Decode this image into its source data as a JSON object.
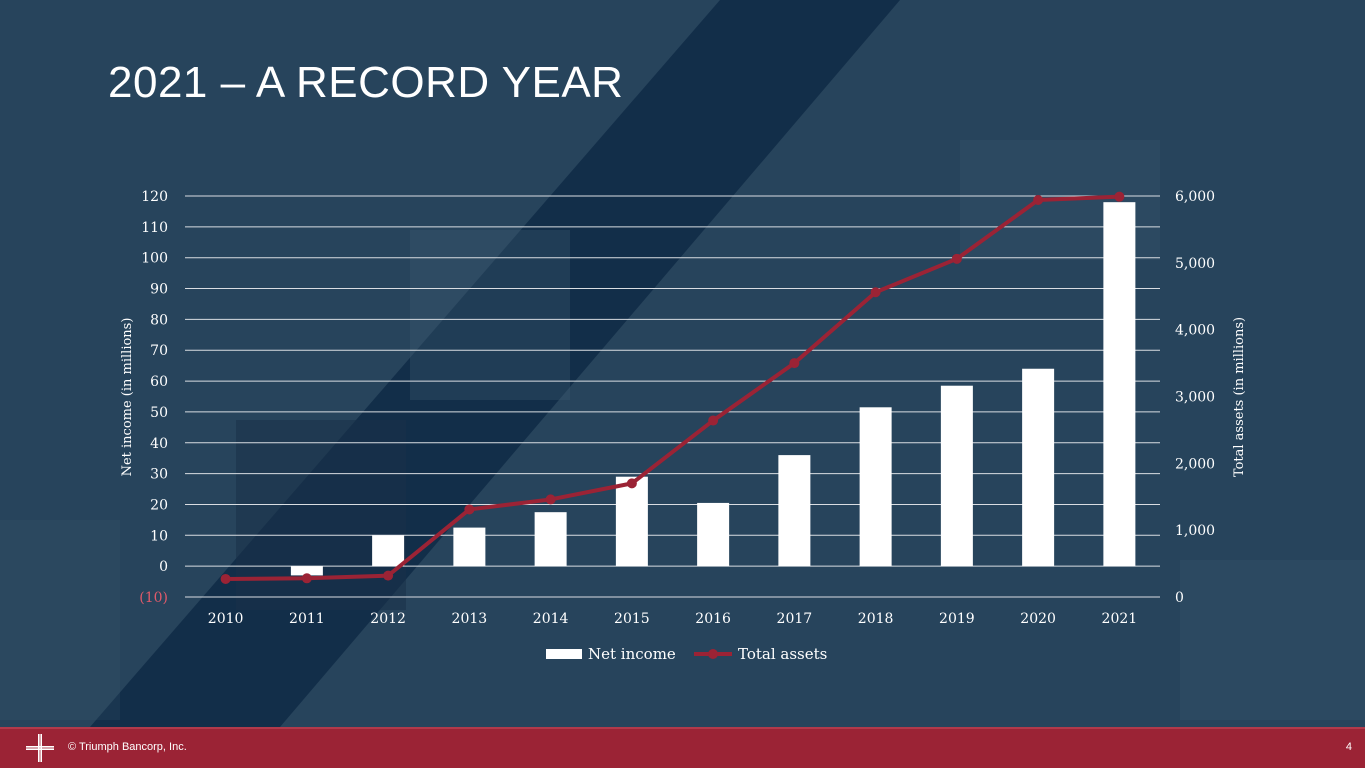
{
  "slide": {
    "title": "2021 – A RECORD YEAR",
    "footer_text": "© Triumph Bancorp, Inc.",
    "page_number": "4"
  },
  "colors": {
    "background": "#2b4a62",
    "bar": "#ffffff",
    "line": "#9b2335",
    "footer": "#9b2335",
    "text": "#ffffff",
    "grid": "#d9dde2"
  },
  "chart_data": {
    "type": "bar",
    "categories": [
      "2010",
      "2011",
      "2012",
      "2013",
      "2014",
      "2015",
      "2016",
      "2017",
      "2018",
      "2019",
      "2020",
      "2021"
    ],
    "series": [
      {
        "name": "Net income",
        "type": "bar",
        "axis": "left",
        "values": [
          0,
          -3,
          10,
          12.5,
          17.5,
          29,
          20.5,
          36,
          51.5,
          58.5,
          64,
          118
        ]
      },
      {
        "name": "Total assets",
        "type": "line",
        "axis": "right",
        "values": [
          270,
          280,
          320,
          1310,
          1460,
          1700,
          2640,
          3500,
          4560,
          5060,
          5940,
          5990
        ]
      }
    ],
    "ylabel": "Net income (in millions)",
    "y2label": "Total assets (in millions)",
    "ylim": [
      -10,
      120
    ],
    "y2lim": [
      0,
      6000
    ],
    "yticks": [
      -10,
      0,
      10,
      20,
      30,
      40,
      50,
      60,
      70,
      80,
      90,
      100,
      110,
      120
    ],
    "ytick_labels": [
      "(10)",
      "0",
      "10",
      "20",
      "30",
      "40",
      "50",
      "60",
      "70",
      "80",
      "90",
      "100",
      "110",
      "120"
    ],
    "y2ticks": [
      0,
      1000,
      2000,
      3000,
      4000,
      5000,
      6000
    ],
    "y2tick_labels": [
      "0",
      "1,000",
      "2,000",
      "3,000",
      "4,000",
      "5,000",
      "6,000"
    ],
    "grid": true,
    "legend": "bottom"
  }
}
